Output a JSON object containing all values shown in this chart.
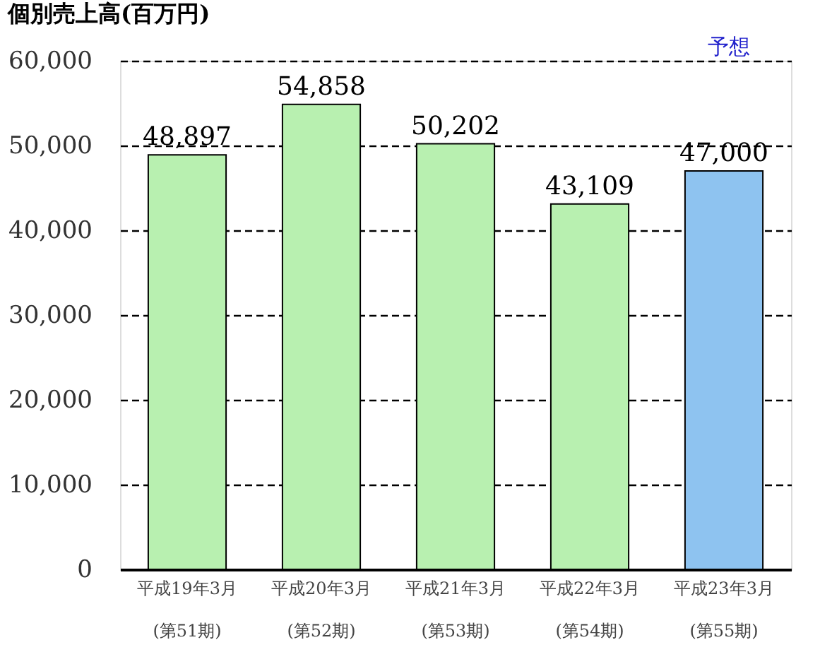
{
  "chart_data": {
    "type": "bar",
    "title": "個別売上高(百万円)",
    "categories": [
      "平成19年3月\n(第51期)",
      "平成20年3月\n(第52期)",
      "平成21年3月\n(第53期)",
      "平成22年3月\n(第54期)",
      "平成23年3月\n(第55期)"
    ],
    "values": [
      48897,
      54858,
      50202,
      43109,
      47000
    ],
    "colors": [
      "#b8f0b0",
      "#b8f0b0",
      "#b8f0b0",
      "#b8f0b0",
      "#8ec3f0"
    ],
    "ylim": [
      0,
      60000
    ],
    "yticks": [
      {
        "value": 0,
        "label": "0"
      },
      {
        "value": 10000,
        "label": "10,000"
      },
      {
        "value": 20000,
        "label": "20,000"
      },
      {
        "value": 30000,
        "label": "30,000"
      },
      {
        "value": 40000,
        "label": "40,000"
      },
      {
        "value": 50000,
        "label": "50,000"
      },
      {
        "value": 60000,
        "label": "60,000"
      }
    ],
    "value_labels": [
      "48,897",
      "54,858",
      "50,202",
      "43,109",
      "47,000"
    ],
    "grid": "y",
    "annotations": [
      "予想"
    ]
  }
}
